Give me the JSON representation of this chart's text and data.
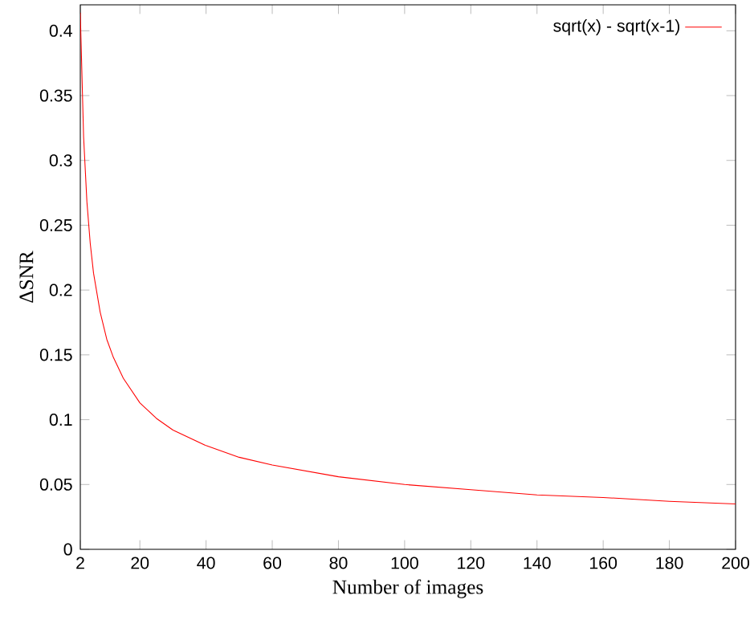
{
  "chart_data": {
    "type": "line",
    "xlabel": "Number of images",
    "ylabel": "ΔSNR",
    "x": [
      2,
      3,
      4,
      5,
      6,
      8,
      10,
      12,
      15,
      20,
      25,
      30,
      40,
      50,
      60,
      80,
      100,
      120,
      140,
      160,
      180,
      200
    ],
    "series": [
      {
        "name": "sqrt(x) - sqrt(x-1)",
        "color": "#ff0000",
        "values": [
          0.414,
          0.318,
          0.268,
          0.236,
          0.213,
          0.183,
          0.162,
          0.148,
          0.132,
          0.113,
          0.101,
          0.092,
          0.08,
          0.071,
          0.065,
          0.056,
          0.05,
          0.046,
          0.042,
          0.04,
          0.037,
          0.035
        ]
      }
    ],
    "xlim": [
      2,
      200
    ],
    "ylim": [
      0,
      0.42
    ],
    "xticks": [
      2,
      20,
      40,
      60,
      80,
      100,
      120,
      140,
      160,
      180,
      200
    ],
    "yticks": [
      0,
      0.05,
      0.1,
      0.15,
      0.2,
      0.25,
      0.3,
      0.35,
      0.4
    ],
    "legend": "top right",
    "grid": false
  }
}
